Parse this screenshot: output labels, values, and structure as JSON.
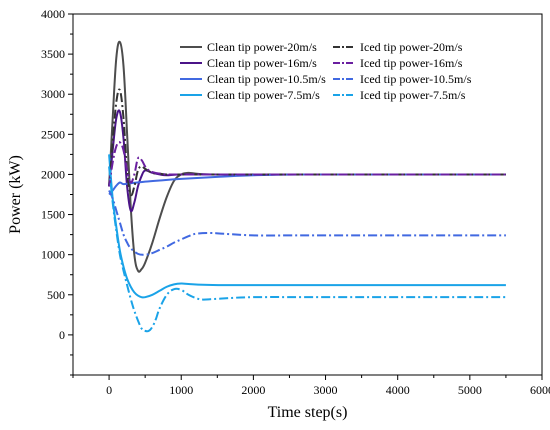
{
  "chart_data": {
    "type": "line",
    "title": "",
    "xlabel": "Time step(s)",
    "ylabel": "Power (kW)",
    "xlim": [
      -500,
      6000
    ],
    "ylim": [
      -500,
      4000
    ],
    "x_ticks": [
      0,
      1000,
      2000,
      3000,
      4000,
      5000,
      6000
    ],
    "y_ticks": [
      0,
      500,
      1000,
      1500,
      2000,
      2500,
      3000,
      3500,
      4000
    ],
    "grid": false,
    "legend_position": "top-right",
    "series": [
      {
        "name": "Clean tip power-20m/s",
        "color": "#4d4d4d",
        "dash": "solid",
        "x": [
          0,
          50,
          100,
          150,
          200,
          250,
          300,
          350,
          400,
          450,
          500,
          600,
          700,
          800,
          900,
          1000,
          1100,
          1200,
          1400,
          2000,
          3000,
          4000,
          5000,
          5500
        ],
        "y": [
          1850,
          2700,
          3450,
          3650,
          3350,
          2500,
          1600,
          1000,
          800,
          820,
          900,
          1150,
          1450,
          1720,
          1920,
          2000,
          2020,
          2010,
          2000,
          2000,
          2000,
          2000,
          2000,
          2000
        ]
      },
      {
        "name": "Clean tip power-16m/s",
        "color": "#4b1488",
        "dash": "solid",
        "x": [
          0,
          50,
          100,
          150,
          200,
          250,
          300,
          350,
          400,
          450,
          500,
          600,
          700,
          800,
          1000,
          1500,
          2000,
          3000,
          4000,
          5000,
          5500
        ],
        "y": [
          1850,
          2300,
          2700,
          2780,
          2450,
          1850,
          1550,
          1650,
          1850,
          1980,
          2050,
          2020,
          2000,
          1990,
          2000,
          2000,
          2000,
          2000,
          2000,
          2000,
          2000
        ]
      },
      {
        "name": "Clean tip power-10.5m/s",
        "color": "#4169e1",
        "dash": "solid",
        "x": [
          0,
          50,
          100,
          150,
          200,
          300,
          500,
          700,
          1000,
          1500,
          2000,
          2500,
          3000,
          4000,
          5000,
          5500
        ],
        "y": [
          1750,
          1800,
          1860,
          1900,
          1880,
          1890,
          1910,
          1925,
          1945,
          1970,
          1990,
          1998,
          2000,
          2000,
          2000,
          2000
        ]
      },
      {
        "name": "Clean tip power-7.5m/s",
        "color": "#1aa3e8",
        "dash": "solid",
        "x": [
          0,
          50,
          100,
          150,
          200,
          250,
          300,
          350,
          400,
          450,
          500,
          600,
          700,
          800,
          900,
          1000,
          1100,
          1300,
          1600,
          2000,
          3000,
          4000,
          5000,
          5500
        ],
        "y": [
          2250,
          1700,
          1350,
          1050,
          850,
          700,
          600,
          530,
          490,
          470,
          470,
          500,
          550,
          600,
          630,
          640,
          635,
          625,
          620,
          620,
          620,
          620,
          620,
          620
        ]
      },
      {
        "name": "Iced tip power-20m/s",
        "color": "#333333",
        "dash": "dashdot",
        "x": [
          0,
          50,
          100,
          150,
          200,
          250,
          300,
          350,
          400,
          450,
          500,
          600,
          700,
          800,
          1000,
          1500,
          2000,
          3000,
          4000,
          5000,
          5500
        ],
        "y": [
          1850,
          2400,
          2900,
          3050,
          2700,
          2050,
          1750,
          1850,
          2050,
          2100,
          2070,
          2020,
          2010,
          2000,
          2000,
          2000,
          2000,
          2000,
          2000,
          2000,
          2000
        ]
      },
      {
        "name": "Iced tip power-16m/s",
        "color": "#6a1fa0",
        "dash": "dashdot",
        "x": [
          0,
          50,
          100,
          150,
          200,
          250,
          300,
          350,
          400,
          450,
          500,
          550,
          600,
          700,
          800,
          1000,
          1500,
          2000,
          3000,
          4000,
          5000,
          5500
        ],
        "y": [
          1850,
          2150,
          2350,
          2400,
          2300,
          2050,
          1900,
          2000,
          2200,
          2180,
          2100,
          2050,
          2030,
          2010,
          2000,
          2000,
          2000,
          2000,
          2000,
          2000,
          2000,
          2000
        ]
      },
      {
        "name": "Iced tip power-10.5m/s",
        "color": "#4169e1",
        "dash": "dashdot",
        "x": [
          0,
          50,
          100,
          150,
          200,
          250,
          300,
          400,
          500,
          600,
          700,
          800,
          900,
          1000,
          1100,
          1200,
          1400,
          1600,
          2000,
          2500,
          3000,
          4000,
          5000,
          5500
        ],
        "y": [
          1800,
          1700,
          1550,
          1400,
          1250,
          1150,
          1080,
          1010,
          1000,
          1020,
          1060,
          1100,
          1150,
          1190,
          1230,
          1260,
          1270,
          1260,
          1240,
          1240,
          1240,
          1240,
          1240,
          1240
        ]
      },
      {
        "name": "Iced tip power-7.5m/s",
        "color": "#1aa3e8",
        "dash": "dashdot",
        "x": [
          0,
          50,
          100,
          150,
          200,
          250,
          300,
          350,
          400,
          450,
          500,
          550,
          600,
          650,
          700,
          800,
          900,
          1000,
          1100,
          1200,
          1300,
          1500,
          2000,
          3000,
          4000,
          5000,
          5500
        ],
        "y": [
          2100,
          1650,
          1300,
          1000,
          800,
          620,
          450,
          300,
          180,
          80,
          50,
          50,
          100,
          200,
          330,
          500,
          570,
          560,
          500,
          460,
          440,
          450,
          470,
          470,
          470,
          470,
          470
        ]
      }
    ]
  }
}
